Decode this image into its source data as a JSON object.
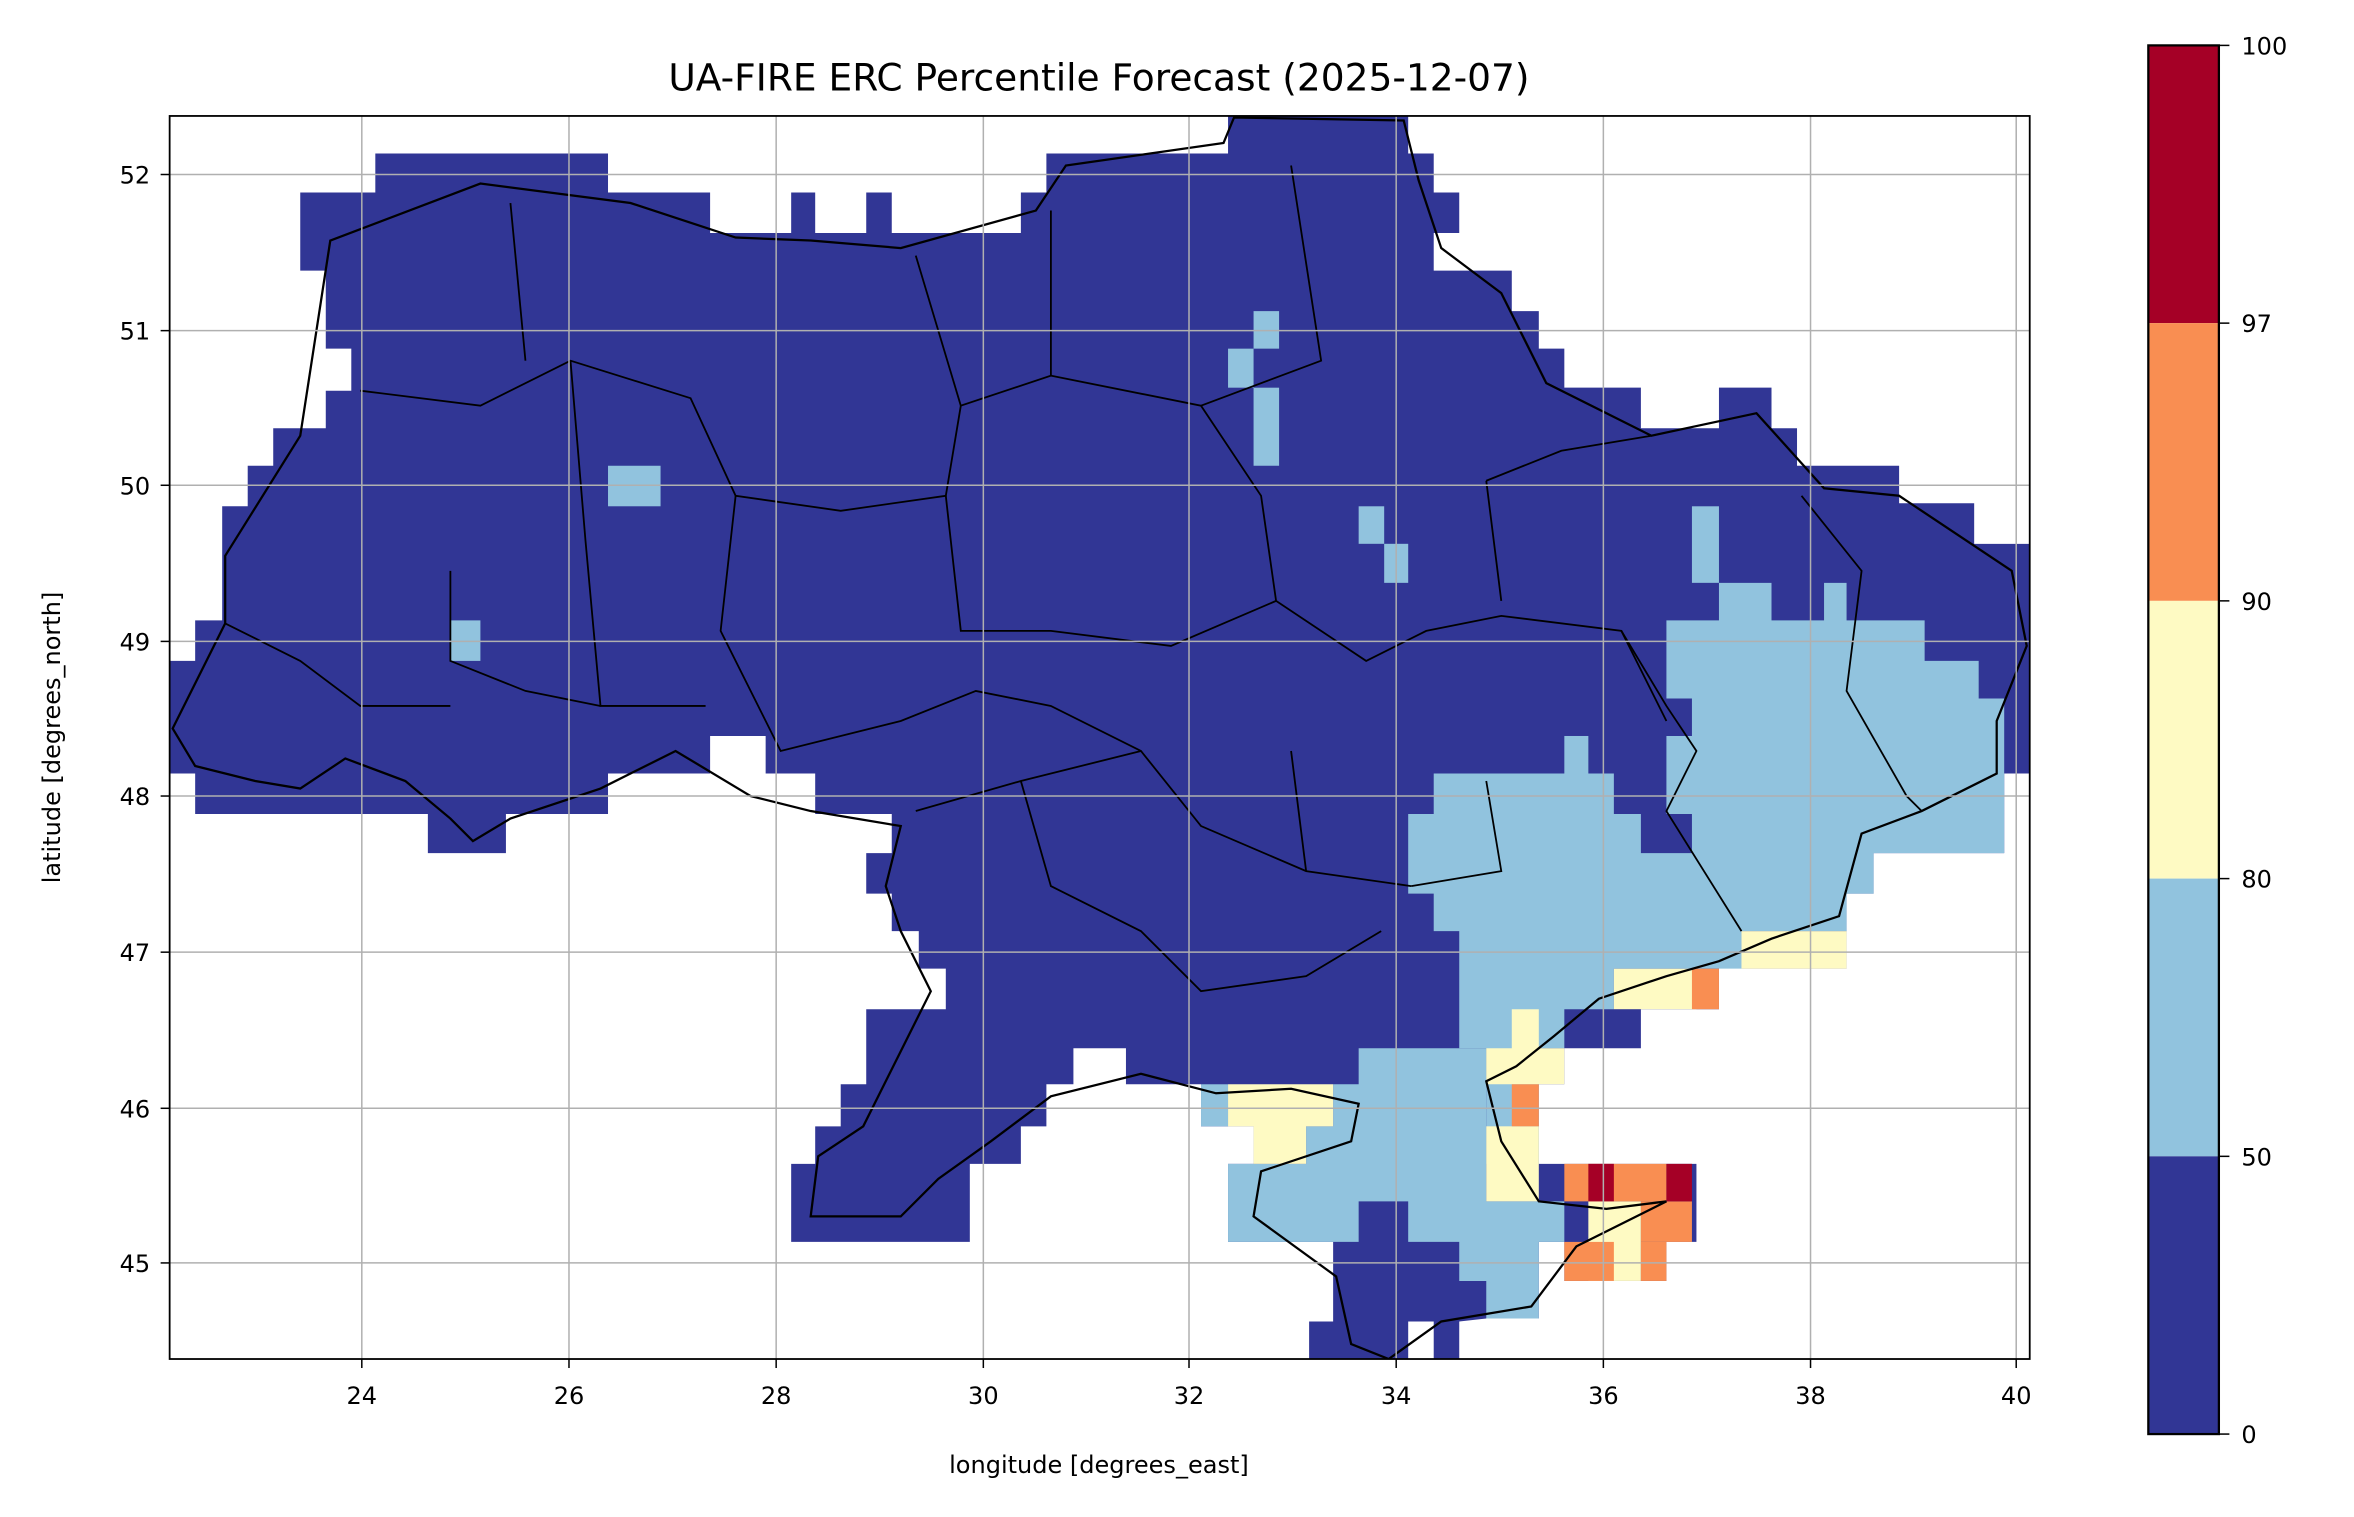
{
  "title": "UA-FIRE ERC Percentile Forecast (2025-12-07)",
  "xlabel": "longitude [degrees_east]",
  "ylabel": "latitude [degrees_north]",
  "x_ticks": [
    "24",
    "26",
    "28",
    "30",
    "32",
    "34",
    "36",
    "38",
    "40"
  ],
  "y_ticks": [
    "52",
    "51",
    "50",
    "49",
    "48",
    "47",
    "46",
    "45"
  ],
  "colorbar": {
    "ticks": [
      "0",
      "50",
      "80",
      "90",
      "97",
      "100"
    ],
    "colors": [
      "#313695",
      "#91c3de",
      "#fefac3",
      "#f98e52",
      "#a50026"
    ]
  },
  "chart_data": {
    "type": "heatmap",
    "title": "UA-FIRE ERC Percentile Forecast (2025-12-07)",
    "xlabel": "longitude [degrees_east]",
    "ylabel": "latitude [degrees_north]",
    "xlim": [
      22.14,
      40.15
    ],
    "ylim": [
      44.38,
      52.38
    ],
    "grid": true,
    "levels": [
      0,
      50,
      80,
      90,
      97,
      100
    ],
    "level_colors": [
      "#313695",
      "#91c3de",
      "#fefac3",
      "#f98e52",
      "#a50026"
    ],
    "summary": "Most of Ukraine is in 0-50 percentile; eastern and southern regions (Donetsk, Luhansk, Zaporizhzhia, Crimea) 50-80; Azov coast patches 80-90; Kerch area 90-100"
  }
}
